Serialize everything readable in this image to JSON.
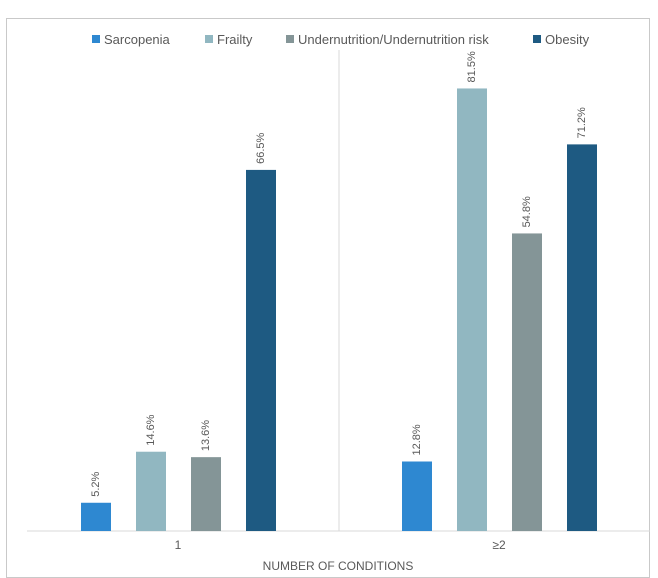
{
  "chart_data": {
    "type": "bar",
    "categories": [
      "1",
      "≥2"
    ],
    "series": [
      {
        "name": "Sarcopenia",
        "color": "#2e88d1",
        "values": [
          5.2,
          12.8
        ],
        "labels": [
          "5.2%",
          "12.8%"
        ]
      },
      {
        "name": "Frailty",
        "color": "#91b7c1",
        "values": [
          14.6,
          81.5
        ],
        "labels": [
          "14.6%",
          "81.5%"
        ]
      },
      {
        "name": "Undernutrition/Undernutrition risk",
        "color": "#849597",
        "values": [
          13.6,
          54.8
        ],
        "labels": [
          "13.6%",
          "54.8%"
        ]
      },
      {
        "name": "Obesity",
        "color": "#1e5a82",
        "values": [
          66.5,
          71.2
        ],
        "labels": [
          "66.5%",
          "71.2%"
        ]
      }
    ],
    "title": "",
    "xlabel": "NUMBER OF CONDITIONS",
    "ylabel": "",
    "ylim": [
      0,
      85
    ],
    "grid": false,
    "legend": "top"
  }
}
